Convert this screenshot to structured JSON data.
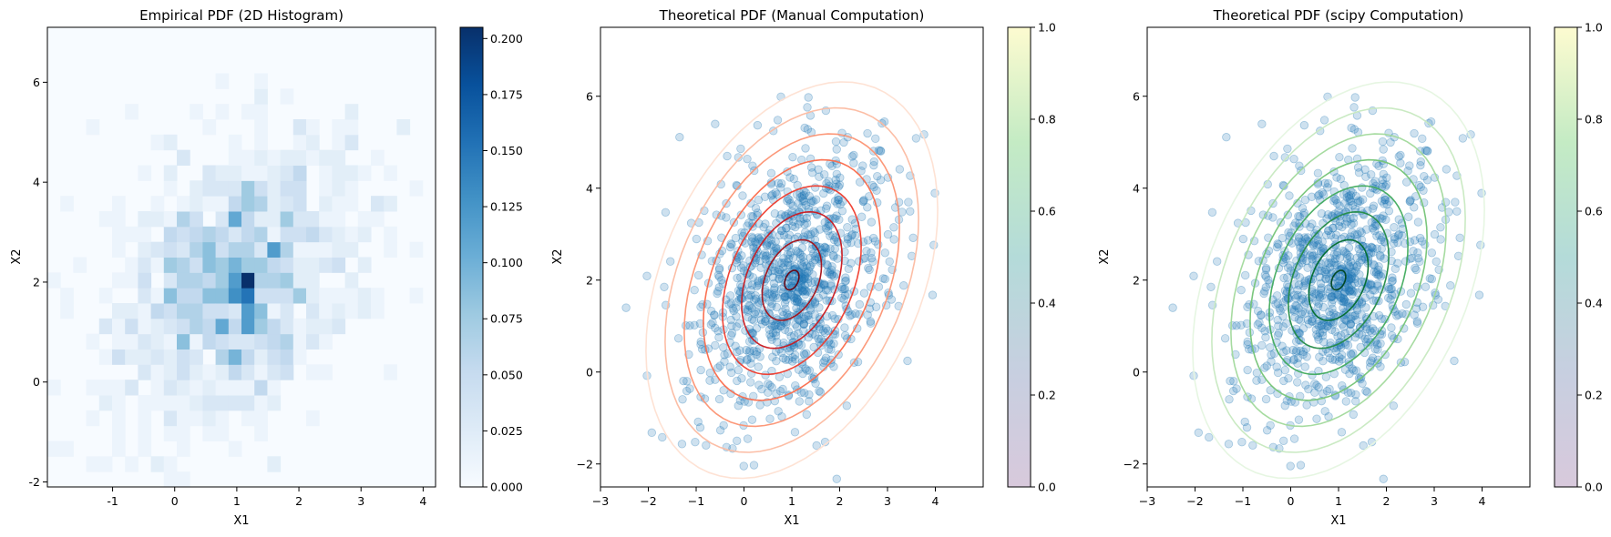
{
  "chart_data": [
    {
      "type": "heatmap",
      "title": "Empirical PDF (2D Histogram)",
      "xlabel": "X1",
      "ylabel": "X2",
      "xlim": [
        -2.05,
        4.2
      ],
      "ylim": [
        -2.1,
        7.1
      ],
      "xticks": [
        "-1",
        "0",
        "1",
        "2",
        "3",
        "4"
      ],
      "yticks": [
        "-2",
        "0",
        "2",
        "4",
        "6"
      ],
      "colormap": "Blues",
      "colorbar": {
        "min": 0,
        "max": 0.205,
        "ticks": [
          "0.000",
          "0.025",
          "0.050",
          "0.075",
          "0.100",
          "0.125",
          "0.150",
          "0.175",
          "0.200"
        ]
      },
      "bins": 30,
      "peak_value": 0.205,
      "peak_location": [
        1.0,
        1.2
      ]
    },
    {
      "type": "scatter",
      "title": "Theoretical PDF (Manual Computation)",
      "xlabel": "X1",
      "ylabel": "X2",
      "xlim": [
        -3,
        5
      ],
      "ylim": [
        -2.5,
        7.5
      ],
      "xticks": [
        "−3",
        "−2",
        "−1",
        "0",
        "1",
        "2",
        "3",
        "4"
      ],
      "yticks": [
        "−2",
        "0",
        "2",
        "4",
        "6"
      ],
      "scatter_color": "#1f77b4",
      "n_points": 1000,
      "mean": [
        1,
        2
      ],
      "covariance": [
        [
          1,
          0.5
        ],
        [
          0.5,
          2
        ]
      ],
      "contour_colormap": "Reds",
      "contour_levels": 8,
      "colorbar": {
        "min": 0,
        "max": 1,
        "ticks": [
          "0.0",
          "0.2",
          "0.4",
          "0.6",
          "0.8",
          "1.0"
        ],
        "colormap": "viridis"
      }
    },
    {
      "type": "scatter",
      "title": "Theoretical PDF (scipy Computation)",
      "xlabel": "X1",
      "ylabel": "X2",
      "xlim": [
        -3,
        5
      ],
      "ylim": [
        -2.5,
        7.5
      ],
      "xticks": [
        "−3",
        "−2",
        "−1",
        "0",
        "1",
        "2",
        "3",
        "4"
      ],
      "yticks": [
        "−2",
        "0",
        "2",
        "4",
        "6"
      ],
      "scatter_color": "#1f77b4",
      "n_points": 1000,
      "mean": [
        1,
        2
      ],
      "covariance": [
        [
          1,
          0.5
        ],
        [
          0.5,
          2
        ]
      ],
      "contour_colormap": "Greens",
      "contour_levels": 8,
      "colorbar": {
        "min": 0,
        "max": 1,
        "ticks": [
          "0.0",
          "0.2",
          "0.4",
          "0.6",
          "0.8",
          "1.0"
        ],
        "colormap": "viridis"
      }
    }
  ]
}
